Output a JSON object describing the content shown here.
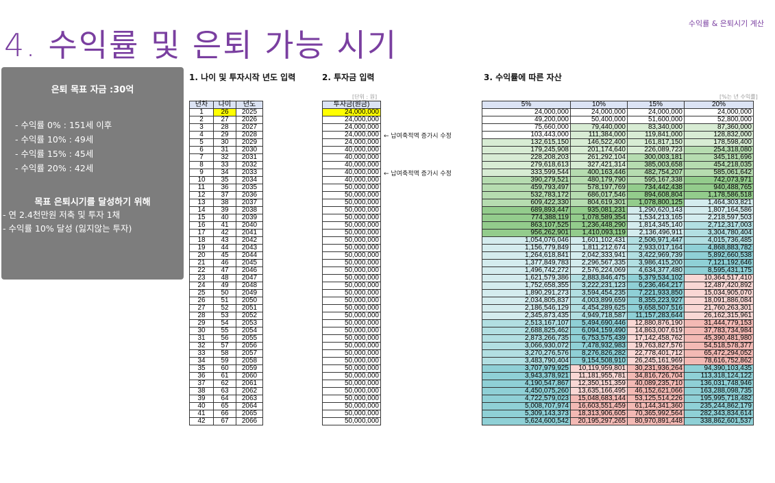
{
  "header": {
    "top_right": "수익률 & 은퇴시기 계산",
    "title": "4. 수익률 및 은퇴 가능 시기"
  },
  "summary": {
    "goal": "은퇴 목표 자금 :30억",
    "lines": [
      "- 수익률    0% : 151세 이후",
      "- 수익률 10% : 49세",
      "- 수익률 15% : 45세",
      "- 수익률 20% : 42세"
    ],
    "plan_title": "목표 은퇴시기를 달성하기 위해",
    "plan_lines": [
      "- 연 2.4천만원 저축 및 투자 1채",
      "- 수익률 10% 달성 (잃지않는 투자)"
    ]
  },
  "sections": {
    "age_title": "1. 나이 및 투자시작 년도 입력",
    "invest_title": "2. 투자금 입력",
    "asset_title": "3. 수익률에 따른 자산",
    "unit_left": "[단위 : 원]",
    "unit_right": "[%는 년 수익률]"
  },
  "notes": {
    "note1": "← 납여축적액 증가시 수정",
    "note2": "← 납여축적액 증가시 수정"
  },
  "table1": {
    "headers": [
      "년차",
      "나이",
      "년도"
    ],
    "rows": [
      [
        "1",
        "26",
        "2025"
      ],
      [
        "2",
        "27",
        "2026"
      ],
      [
        "3",
        "28",
        "2027"
      ],
      [
        "4",
        "29",
        "2028"
      ],
      [
        "5",
        "30",
        "2029"
      ],
      [
        "6",
        "31",
        "2030"
      ],
      [
        "7",
        "32",
        "2031"
      ],
      [
        "8",
        "33",
        "2032"
      ],
      [
        "9",
        "34",
        "2033"
      ],
      [
        "10",
        "35",
        "2034"
      ],
      [
        "11",
        "36",
        "2035"
      ],
      [
        "12",
        "37",
        "2036"
      ],
      [
        "13",
        "38",
        "2037"
      ],
      [
        "14",
        "39",
        "2038"
      ],
      [
        "15",
        "40",
        "2039"
      ],
      [
        "16",
        "41",
        "2040"
      ],
      [
        "17",
        "42",
        "2041"
      ],
      [
        "18",
        "43",
        "2042"
      ],
      [
        "19",
        "44",
        "2043"
      ],
      [
        "20",
        "45",
        "2044"
      ],
      [
        "21",
        "46",
        "2045"
      ],
      [
        "22",
        "47",
        "2046"
      ],
      [
        "23",
        "48",
        "2047"
      ],
      [
        "24",
        "49",
        "2048"
      ],
      [
        "25",
        "50",
        "2049"
      ],
      [
        "26",
        "51",
        "2050"
      ],
      [
        "27",
        "52",
        "2051"
      ],
      [
        "28",
        "53",
        "2052"
      ],
      [
        "29",
        "54",
        "2053"
      ],
      [
        "30",
        "55",
        "2054"
      ],
      [
        "31",
        "56",
        "2055"
      ],
      [
        "32",
        "57",
        "2056"
      ],
      [
        "33",
        "58",
        "2057"
      ],
      [
        "34",
        "59",
        "2058"
      ],
      [
        "35",
        "60",
        "2059"
      ],
      [
        "36",
        "61",
        "2060"
      ],
      [
        "37",
        "62",
        "2061"
      ],
      [
        "38",
        "63",
        "2062"
      ],
      [
        "39",
        "64",
        "2063"
      ],
      [
        "40",
        "65",
        "2064"
      ],
      [
        "41",
        "66",
        "2065"
      ],
      [
        "42",
        "67",
        "2066"
      ]
    ]
  },
  "table2": {
    "header": "투자금(원금)",
    "values": [
      "24,000,000",
      "24,000,000",
      "24,000,000",
      "24,000,000",
      "24,000,000",
      "40,000,000",
      "40,000,000",
      "40,000,000",
      "40,000,000",
      "40,000,000",
      "50,000,000",
      "50,000,000",
      "50,000,000",
      "50,000,000",
      "50,000,000",
      "50,000,000",
      "50,000,000",
      "50,000,000",
      "50,000,000",
      "50,000,000",
      "50,000,000",
      "50,000,000",
      "50,000,000",
      "50,000,000",
      "50,000,000",
      "50,000,000",
      "50,000,000",
      "50,000,000",
      "50,000,000",
      "50,000,000",
      "50,000,000",
      "50,000,000",
      "50,000,000",
      "50,000,000",
      "50,000,000",
      "50,000,000",
      "50,000,000",
      "50,000,000",
      "50,000,000",
      "50,000,000",
      "50,000,000",
      "50,000,000"
    ]
  },
  "table3": {
    "headers": [
      "5%",
      "10%",
      "15%",
      "20%"
    ],
    "rows": [
      [
        "24,000,000",
        "24,000,000",
        "24,000,000",
        "24,000,000"
      ],
      [
        "49,200,000",
        "50,400,000",
        "51,600,000",
        "52,800,000"
      ],
      [
        "75,660,000",
        "79,440,000",
        "83,340,000",
        "87,360,000"
      ],
      [
        "103,443,000",
        "111,384,000",
        "119,841,000",
        "128,832,000"
      ],
      [
        "132,615,150",
        "146,522,400",
        "161,817,150",
        "178,598,400"
      ],
      [
        "179,245,908",
        "201,174,640",
        "226,089,723",
        "254,318,080"
      ],
      [
        "228,208,203",
        "261,292,104",
        "300,003,181",
        "345,181,696"
      ],
      [
        "279,618,613",
        "327,421,314",
        "385,003,658",
        "454,218,035"
      ],
      [
        "333,599,544",
        "400,163,446",
        "482,754,207",
        "585,061,642"
      ],
      [
        "390,279,521",
        "480,179,790",
        "595,167,338",
        "742,073,971"
      ],
      [
        "459,793,497",
        "578,197,769",
        "734,442,438",
        "940,488,765"
      ],
      [
        "532,783,172",
        "686,017,546",
        "894,608,804",
        "1,178,586,518"
      ],
      [
        "609,422,330",
        "804,619,301",
        "1,078,800,125",
        "1,464,303,821"
      ],
      [
        "689,893,447",
        "935,081,231",
        "1,290,620,143",
        "1,807,164,586"
      ],
      [
        "774,388,119",
        "1,078,589,354",
        "1,534,213,165",
        "2,218,597,503"
      ],
      [
        "863,107,525",
        "1,236,448,290",
        "1,814,345,140",
        "2,712,317,003"
      ],
      [
        "956,262,901",
        "1,410,093,119",
        "2,136,496,911",
        "3,304,780,404"
      ],
      [
        "1,054,076,046",
        "1,601,102,431",
        "2,506,971,447",
        "4,015,736,485"
      ],
      [
        "1,156,779,849",
        "1,811,212,674",
        "2,933,017,164",
        "4,868,883,782"
      ],
      [
        "1,264,618,841",
        "2,042,333,941",
        "3,422,969,739",
        "5,892,660,538"
      ],
      [
        "1,377,849,783",
        "2,296,567,335",
        "3,986,415,200",
        "7,121,192,646"
      ],
      [
        "1,496,742,272",
        "2,576,224,069",
        "4,634,377,480",
        "8,595,431,175"
      ],
      [
        "1,621,579,386",
        "2,883,846,475",
        "5,379,534,102",
        "10,364,517,410"
      ],
      [
        "1,752,658,355",
        "3,222,231,123",
        "6,236,464,217",
        "12,487,420,892"
      ],
      [
        "1,890,291,273",
        "3,594,454,235",
        "7,221,933,850",
        "15,034,905,070"
      ],
      [
        "2,034,805,837",
        "4,003,899,659",
        "8,355,223,927",
        "18,091,886,084"
      ],
      [
        "2,186,546,129",
        "4,454,289,625",
        "9,658,507,516",
        "21,760,263,301"
      ],
      [
        "2,345,873,435",
        "4,949,718,587",
        "11,157,283,644",
        "26,162,315,961"
      ],
      [
        "2,513,167,107",
        "5,494,690,446",
        "12,880,876,190",
        "31,444,779,153"
      ],
      [
        "2,688,825,462",
        "6,094,159,490",
        "14,863,007,619",
        "37,783,734,984"
      ],
      [
        "2,873,266,735",
        "6,753,575,439",
        "17,142,458,762",
        "45,390,481,980"
      ],
      [
        "3,066,930,072",
        "7,478,932,983",
        "19,763,827,576",
        "54,518,578,377"
      ],
      [
        "3,270,276,576",
        "8,276,826,282",
        "22,778,401,712",
        "65,472,294,052"
      ],
      [
        "3,483,790,404",
        "9,154,508,910",
        "26,245,161,969",
        "78,616,752,862"
      ],
      [
        "3,707,979,925",
        "10,119,959,801",
        "30,231,936,264",
        "94,390,103,435"
      ],
      [
        "3,943,378,921",
        "11,181,955,781",
        "34,816,726,704",
        "113,318,124,122"
      ],
      [
        "4,190,547,867",
        "12,350,151,359",
        "40,089,235,710",
        "136,031,748,946"
      ],
      [
        "4,450,075,260",
        "13,635,166,495",
        "46,152,621,066",
        "163,288,098,735"
      ],
      [
        "4,722,579,023",
        "15,048,683,144",
        "53,125,514,226",
        "195,995,718,482"
      ],
      [
        "5,008,707,974",
        "16,603,551,459",
        "61,144,341,360",
        "235,244,862,179"
      ],
      [
        "5,309,143,373",
        "18,313,906,605",
        "70,365,992,564",
        "282,343,834,614"
      ],
      [
        "5,624,600,542",
        "20,195,297,265",
        "80,970,891,448",
        "338,862,601,537"
      ]
    ]
  },
  "colors": {
    "title": "#7a3fa0",
    "highlight": "#ffff00",
    "box": "#7d7d7d"
  }
}
